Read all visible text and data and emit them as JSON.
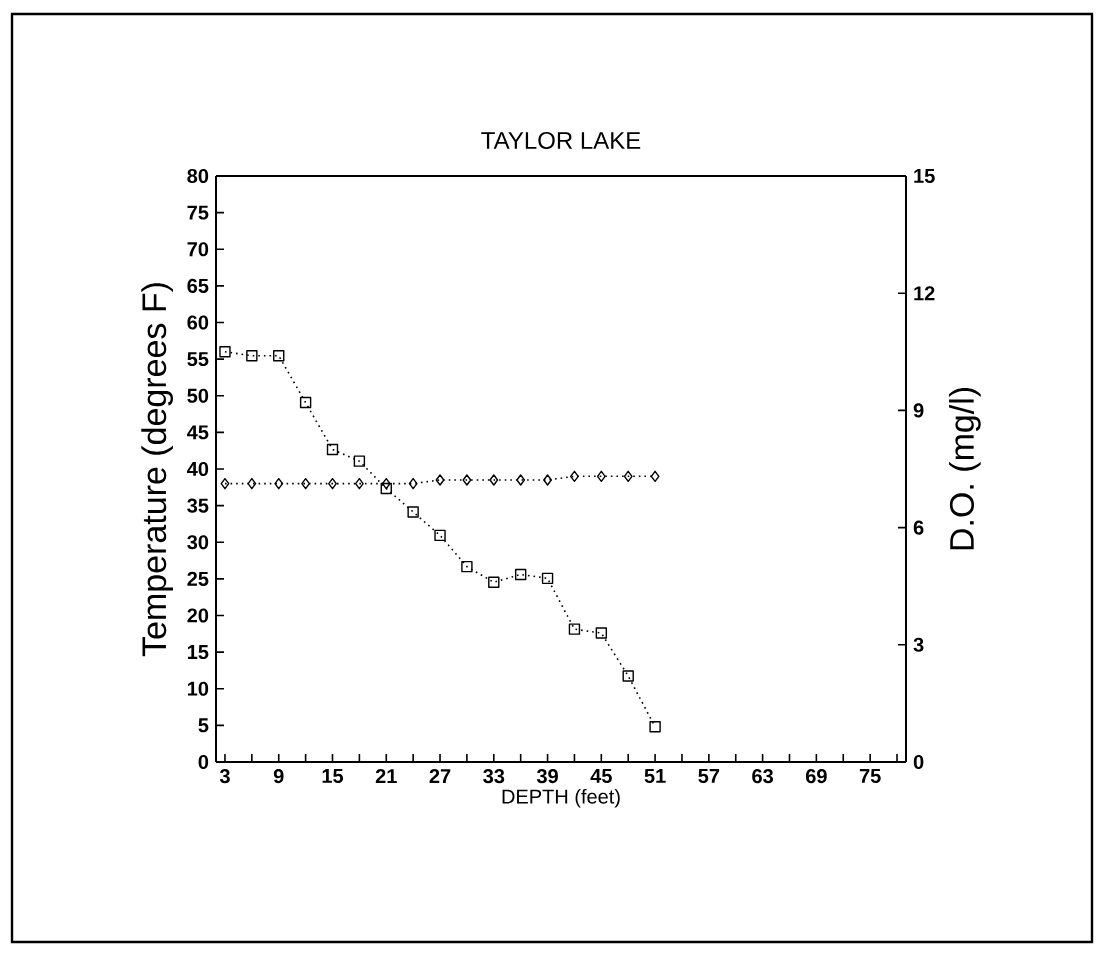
{
  "chart_data": {
    "type": "line",
    "title": "TAYLOR LAKE",
    "xlabel": "DEPTH (feet)",
    "ylabel": "Temperature (degrees F)",
    "y2label": "D.O. (mg/l)",
    "x": [
      3,
      6,
      9,
      12,
      15,
      18,
      21,
      24,
      27,
      30,
      33,
      36,
      39,
      42,
      45,
      48,
      51
    ],
    "series": [
      {
        "color": "#000000",
        "marker": "diamond",
        "values": [
          38,
          38,
          38,
          38,
          38,
          38,
          38,
          38,
          38.5,
          38.5,
          38.5,
          38.5,
          38.5,
          39,
          39,
          39,
          39
        ]
      },
      {
        "color": "#000000",
        "marker": "square",
        "axis": "y2",
        "values": [
          10.5,
          10.4,
          10.4,
          9.2,
          8.0,
          7.7,
          7.0,
          6.4,
          5.8,
          5.0,
          4.6,
          4.8,
          4.7,
          3.4,
          3.3,
          2.2,
          0.9
        ]
      }
    ],
    "line_style": "dotted",
    "grid": false,
    "xlim": [
      2,
      79
    ],
    "xticks": [
      3,
      {
        "value": 6,
        "label": null
      },
      9,
      {
        "value": 12,
        "label": null
      },
      15,
      {
        "value": 18,
        "label": null
      },
      21,
      {
        "value": 24,
        "label": null
      },
      27,
      {
        "value": 30,
        "label": null
      },
      33,
      {
        "value": 36,
        "label": null
      },
      39,
      {
        "value": 42,
        "label": null
      },
      45,
      {
        "value": 48,
        "label": null
      },
      51,
      {
        "value": 54,
        "label": null
      },
      57,
      {
        "value": 60,
        "label": null
      },
      63,
      {
        "value": 66,
        "label": null
      },
      69,
      {
        "value": 72,
        "label": null
      },
      75,
      {
        "value": 78,
        "label": null
      }
    ],
    "ylim": [
      0,
      80
    ],
    "yticks": [
      0,
      5,
      10,
      15,
      20,
      25,
      30,
      35,
      40,
      45,
      50,
      55,
      60,
      65,
      70,
      75,
      80
    ],
    "y2lim": [
      0,
      15
    ],
    "y2ticks": [
      0,
      3,
      6,
      9,
      12,
      15
    ]
  }
}
